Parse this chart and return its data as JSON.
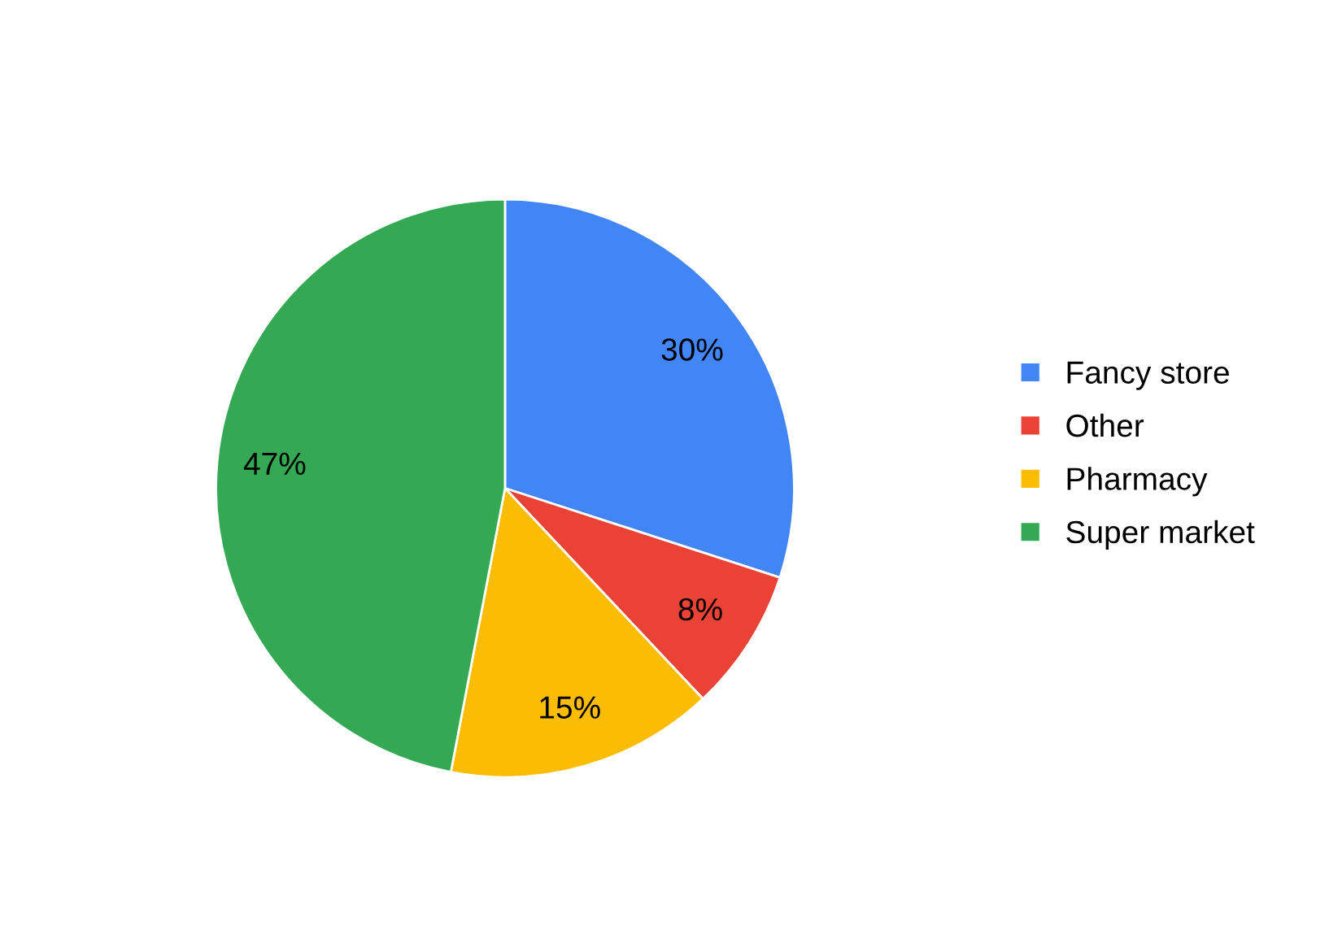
{
  "chart_data": {
    "type": "pie",
    "categories": [
      "Fancy store",
      "Other",
      "Pharmacy",
      "Super market"
    ],
    "values": [
      30,
      8,
      15,
      47
    ],
    "colors": [
      "#4285f4",
      "#ea4335",
      "#fbbc04",
      "#34a853"
    ],
    "value_labels": [
      "30%",
      "8%",
      "15%",
      "47%"
    ],
    "legend": "right"
  }
}
